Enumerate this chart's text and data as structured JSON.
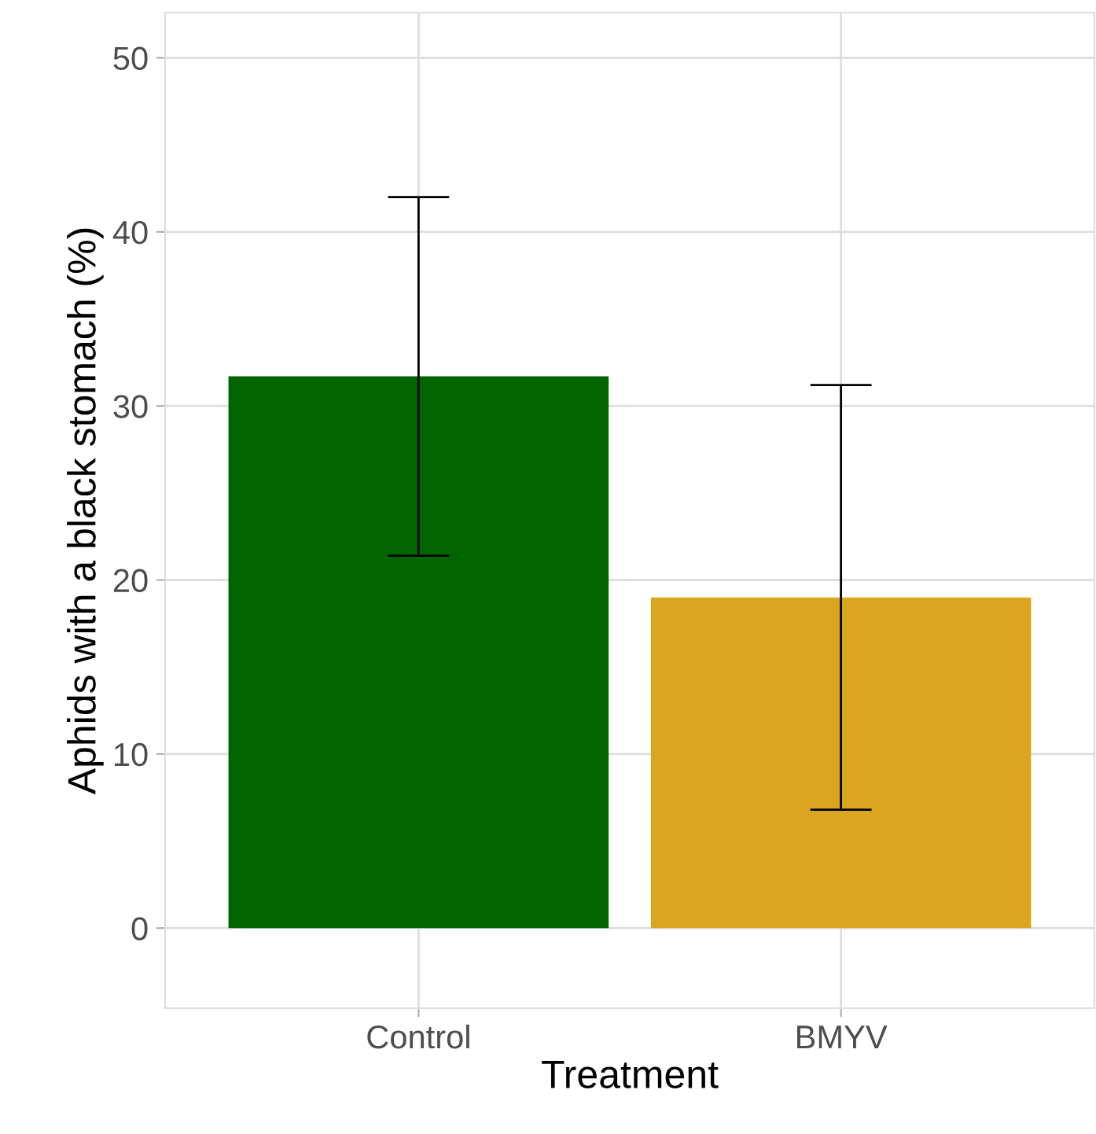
{
  "chart_data": {
    "type": "bar",
    "xlabel": "Treatment",
    "ylabel": "Aphids with a black stomach (%)",
    "categories": [
      "Control",
      "BMYV"
    ],
    "values": [
      31.7,
      19.0
    ],
    "errors": [
      10.3,
      12.2
    ],
    "colors": [
      "#006400",
      "#daa520"
    ],
    "ylim": [
      -4.6,
      52.6
    ],
    "yticks": [
      0,
      10,
      20,
      30,
      40,
      50
    ],
    "grid": true
  }
}
